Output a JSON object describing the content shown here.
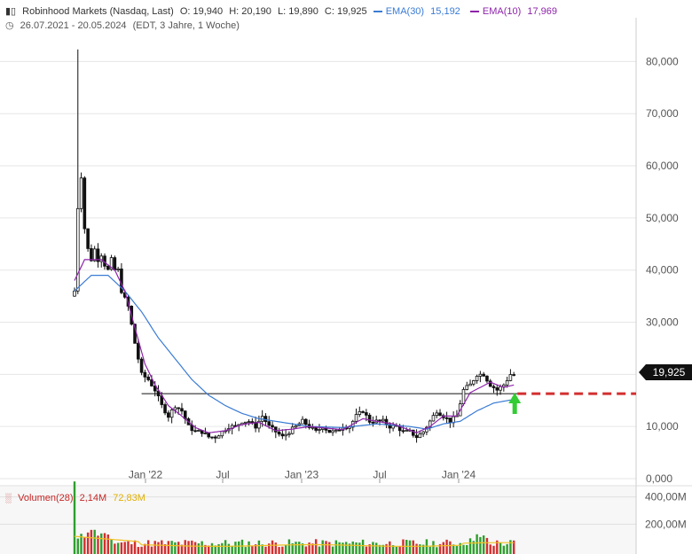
{
  "header": {
    "title": "Robinhood Markets (Nasdaq, Last)",
    "open": "O: 19,940",
    "high": "H: 20,190",
    "low": "L: 19,890",
    "close": "C: 19,925",
    "ema30_label": "EMA(30)",
    "ema30_value": "15,192",
    "ema10_label": "EMA(10)",
    "ema10_value": "17,969",
    "range": "26.07.2021 - 20.05.2024",
    "range_note": "(EDT, 3 Jahre, 1 Woche)"
  },
  "volume_header": {
    "label": "Volumen(28)",
    "value": "2,14M",
    "avg": "72,83M"
  },
  "last_price": "19,925",
  "colors": {
    "ema30": "#3a7bd5",
    "ema10": "#8e24aa",
    "volume_up": "#2e9e2e",
    "volume_down": "#d32f2f",
    "volume_avg": "#f0c020",
    "resistance_dash": "#d32f2f",
    "arrow": "#33cc33"
  },
  "chart_data": [
    {
      "type": "candlestick",
      "x_ticks": [
        "Jan '22",
        "Jul",
        "Jan '23",
        "Jul",
        "Jan '24"
      ],
      "y_ticks": [
        "0,000",
        "10,000",
        "20,000",
        "30,000",
        "40,000",
        "50,000",
        "60,000",
        "70,000",
        "80,000"
      ],
      "ylim": [
        0,
        85
      ],
      "weeks": 148,
      "close_anchors": [
        [
          0,
          36
        ],
        [
          1,
          52
        ],
        [
          2,
          58
        ],
        [
          3,
          48
        ],
        [
          4,
          44
        ],
        [
          5,
          42
        ],
        [
          6,
          44
        ],
        [
          7,
          42
        ],
        [
          8,
          43
        ],
        [
          9,
          41
        ],
        [
          10,
          40
        ],
        [
          11,
          42
        ],
        [
          12,
          40
        ],
        [
          13,
          40
        ],
        [
          14,
          36
        ],
        [
          16,
          33
        ],
        [
          18,
          26
        ],
        [
          20,
          20
        ],
        [
          22,
          19
        ],
        [
          24,
          17
        ],
        [
          26,
          14
        ],
        [
          28,
          12
        ],
        [
          30,
          14
        ],
        [
          32,
          13
        ],
        [
          34,
          10
        ],
        [
          36,
          9
        ],
        [
          38,
          9
        ],
        [
          40,
          8
        ],
        [
          42,
          8
        ],
        [
          44,
          9
        ],
        [
          46,
          10
        ],
        [
          48,
          10
        ],
        [
          50,
          11
        ],
        [
          52,
          11
        ],
        [
          54,
          10
        ],
        [
          56,
          12
        ],
        [
          58,
          10
        ],
        [
          60,
          9
        ],
        [
          62,
          8
        ],
        [
          64,
          9
        ],
        [
          66,
          10
        ],
        [
          68,
          11
        ],
        [
          70,
          10
        ],
        [
          72,
          9
        ],
        [
          74,
          10
        ],
        [
          76,
          9
        ],
        [
          78,
          9
        ],
        [
          80,
          10
        ],
        [
          82,
          10
        ],
        [
          84,
          12
        ],
        [
          86,
          13
        ],
        [
          88,
          11
        ],
        [
          90,
          11
        ],
        [
          92,
          11
        ],
        [
          94,
          10
        ],
        [
          96,
          10
        ],
        [
          98,
          9
        ],
        [
          100,
          9
        ],
        [
          102,
          8
        ],
        [
          104,
          9
        ],
        [
          106,
          11
        ],
        [
          108,
          13
        ],
        [
          110,
          12
        ],
        [
          112,
          11
        ],
        [
          114,
          12
        ],
        [
          116,
          17
        ],
        [
          118,
          18
        ],
        [
          120,
          20
        ],
        [
          122,
          20
        ],
        [
          124,
          18
        ],
        [
          126,
          17
        ],
        [
          128,
          18
        ],
        [
          130,
          20
        ],
        [
          131,
          19.9
        ]
      ],
      "ema30": [
        [
          0,
          36
        ],
        [
          5,
          39
        ],
        [
          10,
          39
        ],
        [
          15,
          36
        ],
        [
          20,
          32
        ],
        [
          25,
          27
        ],
        [
          30,
          23
        ],
        [
          35,
          19
        ],
        [
          40,
          16
        ],
        [
          45,
          14
        ],
        [
          50,
          12.5
        ],
        [
          55,
          11.5
        ],
        [
          60,
          11
        ],
        [
          65,
          10.5
        ],
        [
          70,
          10
        ],
        [
          80,
          9.8
        ],
        [
          90,
          10.5
        ],
        [
          100,
          10
        ],
        [
          105,
          9.5
        ],
        [
          110,
          10.5
        ],
        [
          115,
          11
        ],
        [
          120,
          13
        ],
        [
          125,
          14.5
        ],
        [
          131,
          15.2
        ]
      ],
      "ema10": [
        [
          0,
          38
        ],
        [
          3,
          42
        ],
        [
          8,
          42
        ],
        [
          12,
          40
        ],
        [
          15,
          36
        ],
        [
          18,
          29
        ],
        [
          21,
          22
        ],
        [
          24,
          18
        ],
        [
          28,
          14
        ],
        [
          32,
          12
        ],
        [
          36,
          9.8
        ],
        [
          40,
          8.8
        ],
        [
          45,
          9.2
        ],
        [
          50,
          10.4
        ],
        [
          55,
          10.8
        ],
        [
          60,
          9.2
        ],
        [
          65,
          9.5
        ],
        [
          70,
          10
        ],
        [
          80,
          9.4
        ],
        [
          86,
          11.5
        ],
        [
          90,
          11
        ],
        [
          95,
          10.5
        ],
        [
          102,
          8.8
        ],
        [
          106,
          10
        ],
        [
          110,
          12
        ],
        [
          114,
          12
        ],
        [
          118,
          16.5
        ],
        [
          124,
          18.5
        ],
        [
          128,
          17.5
        ],
        [
          131,
          17.97
        ]
      ],
      "resistance_level": 16.3,
      "last_close": 19.925
    },
    {
      "type": "bar",
      "series_label": "Volumen(28)",
      "y_ticks": [
        "200,00M",
        "400,00M"
      ],
      "ylim": [
        0,
        450
      ],
      "avg_value": 72.83
    }
  ]
}
